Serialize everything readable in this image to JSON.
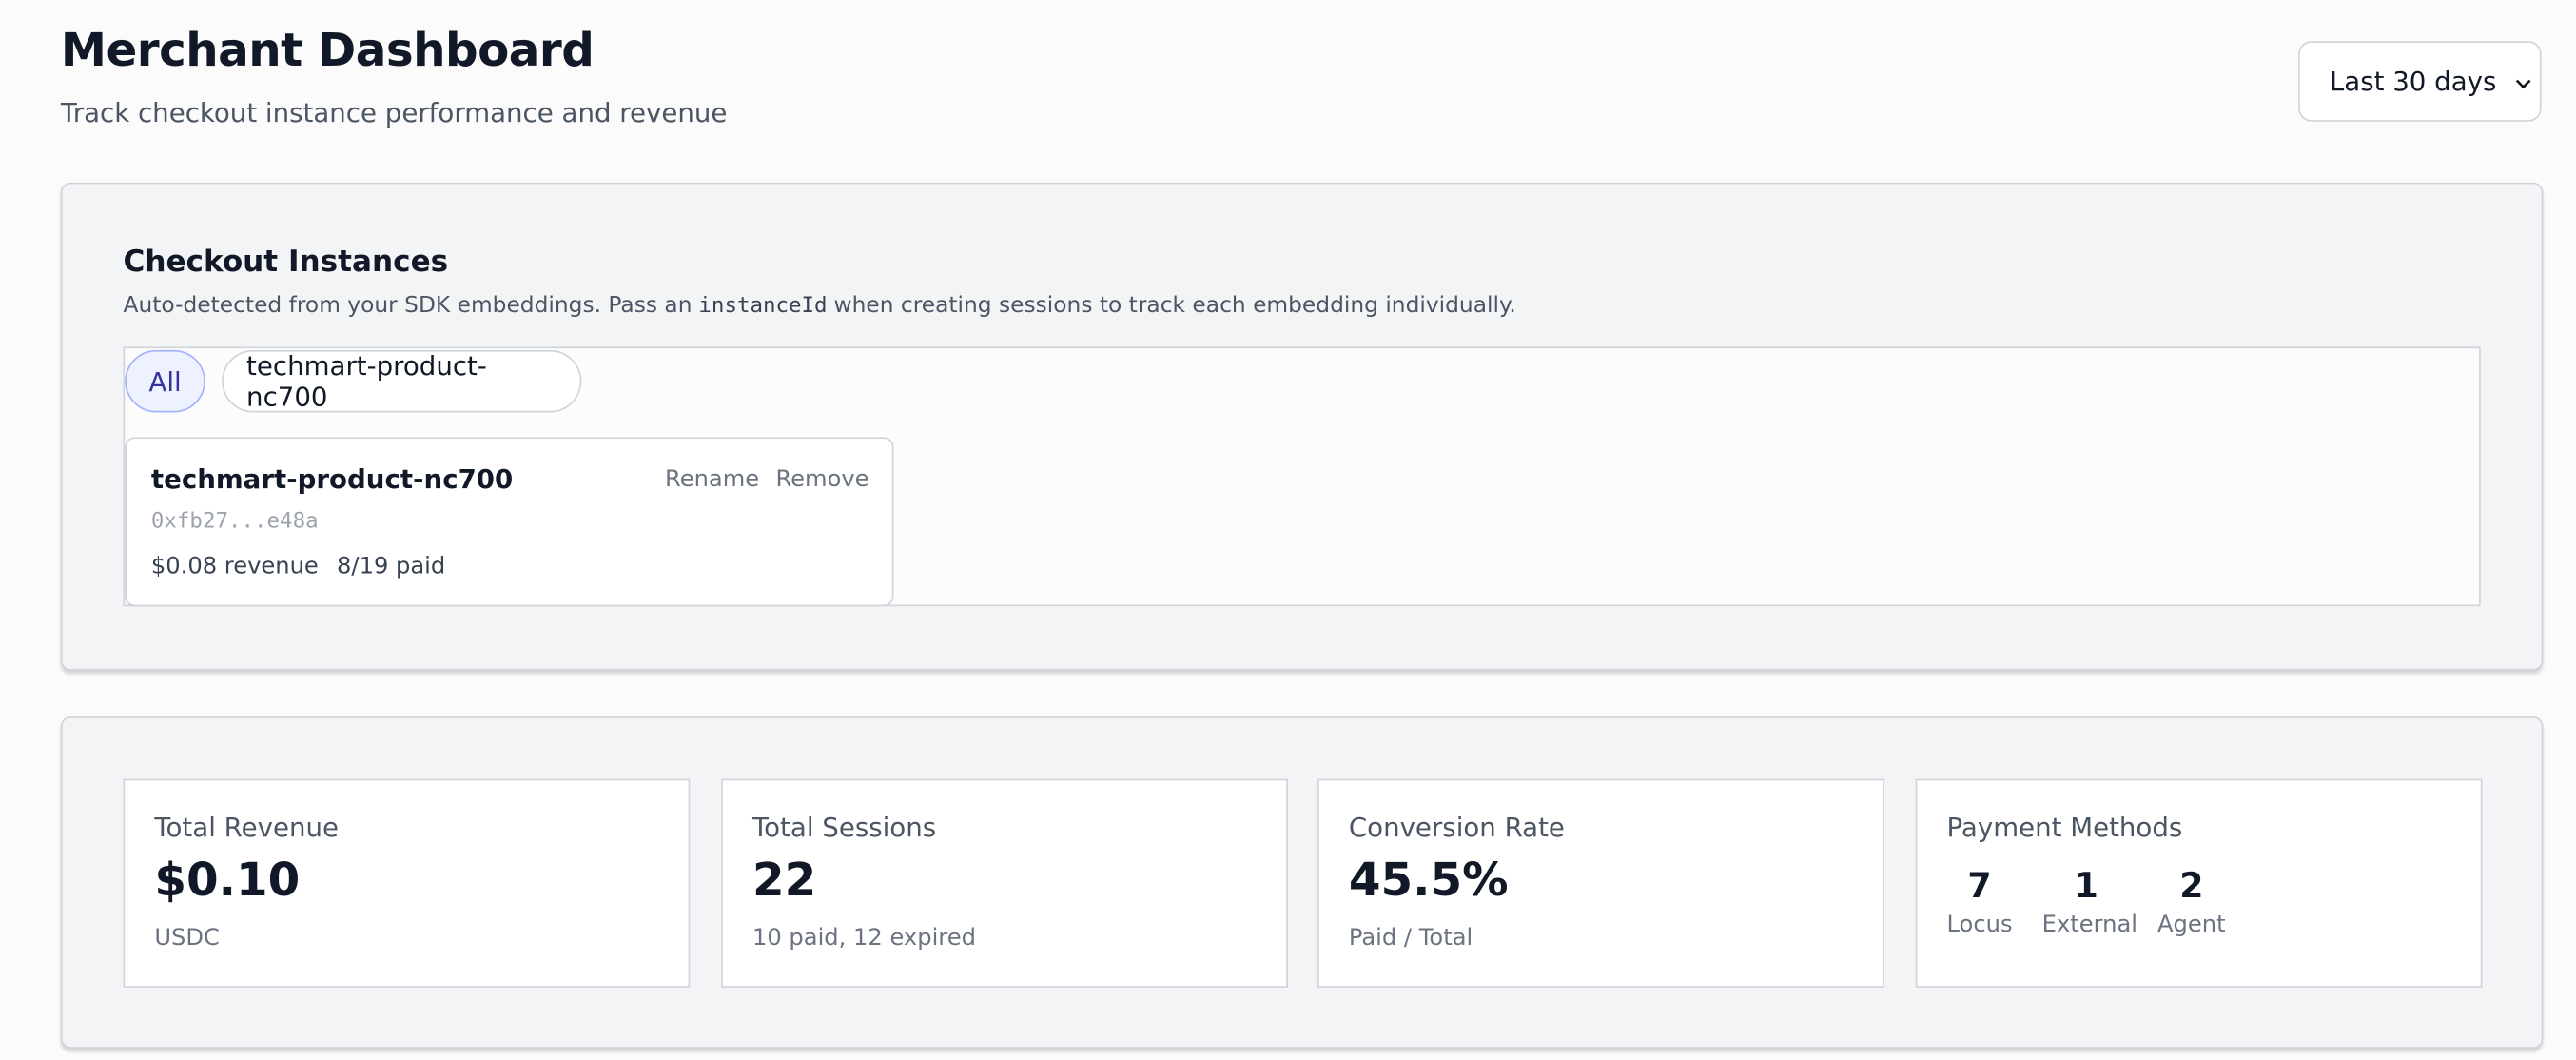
{
  "header": {
    "title": "Merchant Dashboard",
    "subtitle": "Track checkout instance performance and revenue",
    "range_select": "Last 30 days"
  },
  "instances": {
    "title": "Checkout Instances",
    "description_before": "Auto-detected from your SDK embeddings. Pass an",
    "description_code": "instanceId",
    "description_after": "when creating sessions to track each embedding individually.",
    "filters": [
      "All",
      "techmart-product-nc700"
    ],
    "cards": [
      {
        "name": "techmart-product-nc700",
        "address": "0xfb27...e48a",
        "revenue": "$0.08 revenue",
        "paid": "8/19 paid",
        "actions": [
          "Rename",
          "Remove"
        ]
      }
    ]
  },
  "stats": [
    {
      "label": "Total Revenue",
      "value": "$0.10",
      "note": "USDC"
    },
    {
      "label": "Total Sessions",
      "value": 22,
      "note": "10 paid, 12 expired"
    },
    {
      "label": "Conversion Rate",
      "value": "45.5%",
      "note": "Paid / Total"
    }
  ],
  "payment_methods": {
    "label": "Payment Methods",
    "methods": [
      {
        "count": 7,
        "name": "Locus"
      },
      {
        "count": 1,
        "name": "External"
      },
      {
        "count": 2,
        "name": "Agent"
      }
    ]
  }
}
